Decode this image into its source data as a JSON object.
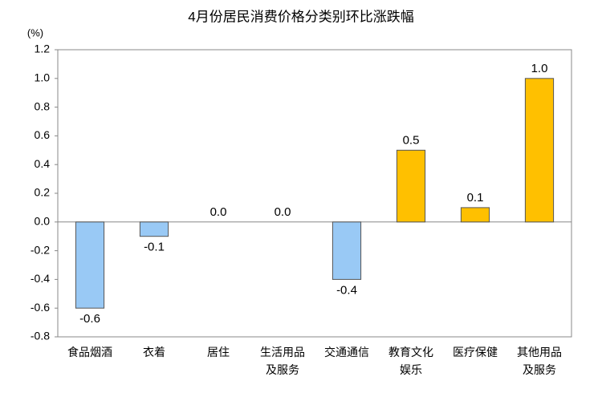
{
  "chart_data": {
    "type": "bar",
    "title": "4月份居民消费价格分类别环比涨跌幅",
    "y_label": "(%)",
    "categories": [
      "食品烟酒",
      "衣着",
      "居住",
      "生活用品及服务",
      "交通通信",
      "教育文化娱乐",
      "医疗保健",
      "其他用品及服务"
    ],
    "values": [
      -0.6,
      -0.1,
      0,
      0,
      -0.4,
      0.5,
      0.1,
      1
    ],
    "value_labels": [
      "-0.6",
      "-0.1",
      "0.0",
      "0.0",
      "-0.4",
      "0.5",
      "0.1",
      "1.0"
    ],
    "positive_color": "#ffc000",
    "negative_color": "#99c9f5",
    "ylim": [
      -0.8,
      1.2
    ],
    "yticks": [
      1.2,
      {
        "value": 1,
        "label": "1.0"
      },
      0.8,
      0.6,
      0.4,
      0.2,
      {
        "value": 0,
        "label": "0.0"
      },
      -0.2,
      -0.4,
      -0.6,
      -0.8
    ]
  }
}
